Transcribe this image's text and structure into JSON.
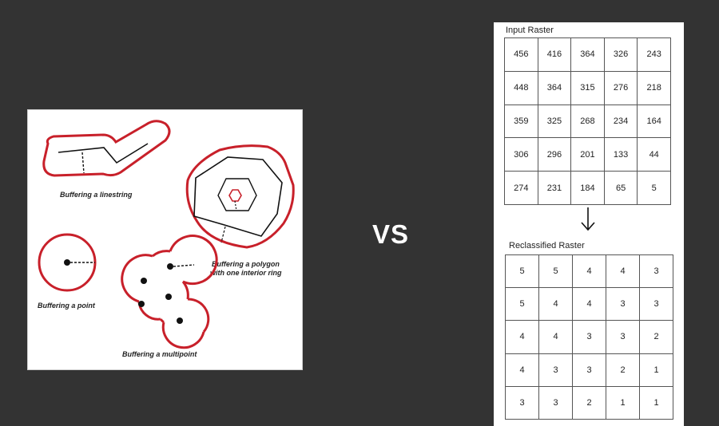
{
  "buffer_diagram": {
    "captions": {
      "linestring": "Buffering a linestring",
      "polygon_line1": "Buffering a polygon",
      "polygon_line2": "with one interior ring",
      "point": "Buffering a point",
      "multipoint": "Buffering a multipoint"
    },
    "buffer_color": "#c8202a"
  },
  "separator": {
    "label": "VS"
  },
  "raster": {
    "input_title": "Input Raster",
    "input_rows": [
      [
        "456",
        "416",
        "364",
        "326",
        "243"
      ],
      [
        "448",
        "364",
        "315",
        "276",
        "218"
      ],
      [
        "359",
        "325",
        "268",
        "234",
        "164"
      ],
      [
        "306",
        "296",
        "201",
        "133",
        "44"
      ],
      [
        "274",
        "231",
        "184",
        "65",
        "5"
      ]
    ],
    "output_title": "Reclassified Raster",
    "output_rows": [
      [
        "5",
        "5",
        "4",
        "4",
        "3"
      ],
      [
        "5",
        "4",
        "4",
        "3",
        "3"
      ],
      [
        "4",
        "4",
        "3",
        "3",
        "2"
      ],
      [
        "4",
        "3",
        "3",
        "2",
        "1"
      ],
      [
        "3",
        "3",
        "2",
        "1",
        "1"
      ]
    ]
  }
}
